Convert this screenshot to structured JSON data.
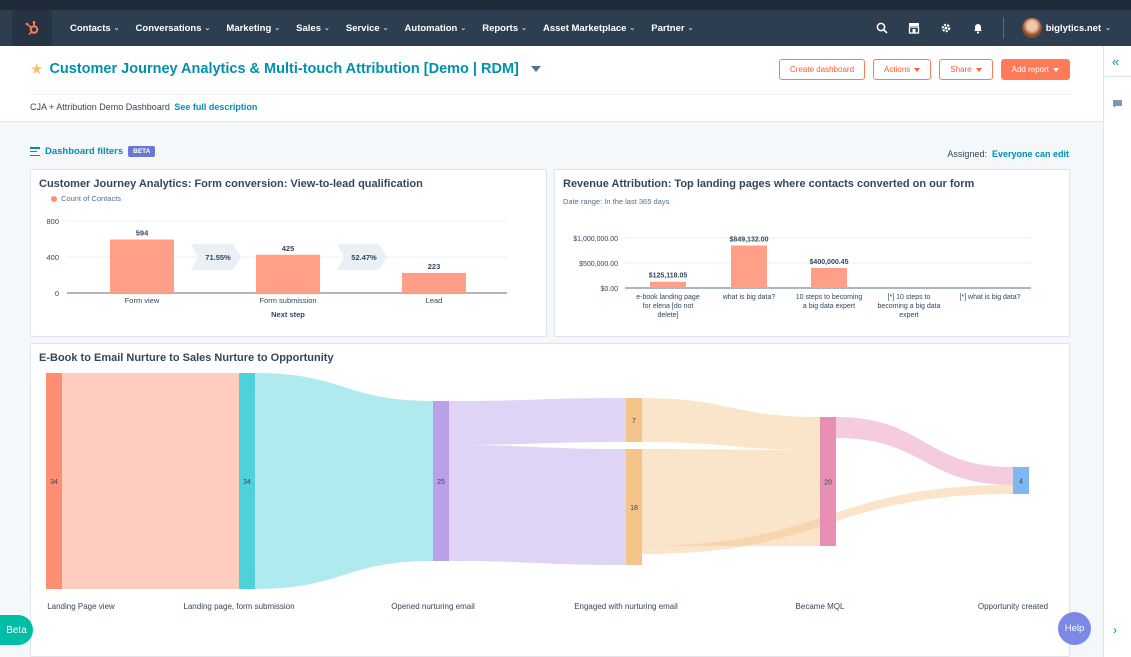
{
  "nav": {
    "items": [
      {
        "label": "Contacts"
      },
      {
        "label": "Conversations"
      },
      {
        "label": "Marketing"
      },
      {
        "label": "Sales"
      },
      {
        "label": "Service"
      },
      {
        "label": "Automation"
      },
      {
        "label": "Reports"
      },
      {
        "label": "Asset Marketplace"
      },
      {
        "label": "Partner"
      }
    ],
    "account": "biglytics.net",
    "icons": [
      "search-icon",
      "marketplace-icon",
      "settings-icon",
      "notifications-icon"
    ]
  },
  "header": {
    "title": "Customer Journey Analytics & Multi-touch Attribution [Demo | RDM]",
    "description": "CJA + Attribution Demo Dashboard",
    "description_link": "See full description",
    "buttons": {
      "create": "Create dashboard",
      "actions": "Actions",
      "share": "Share",
      "add": "Add report"
    }
  },
  "filters": {
    "label": "Dashboard filters",
    "badge": "BETA",
    "assigned_label": "Assigned:",
    "assigned_value": "Everyone can edit"
  },
  "funnel": {
    "title": "Customer Journey Analytics: Form conversion: View-to-lead qualification",
    "legend": "Count of Contacts",
    "chart_data": {
      "type": "bar",
      "categories": [
        "Form view",
        "Form submission",
        "Lead"
      ],
      "values": [
        594,
        425,
        223
      ],
      "value_labels": [
        "594",
        "425",
        "223"
      ],
      "conversion_rates": [
        "71.55%",
        "52.47%"
      ],
      "yticks": [
        "800",
        "400",
        "0"
      ],
      "ylim": [
        0,
        800
      ],
      "xlabel": "Next step",
      "color": "#ff9f87"
    }
  },
  "attribution": {
    "title": "Revenue Attribution: Top landing pages where contacts converted on our form",
    "subtitle": "Date range: In the last 365 days",
    "chart_data": {
      "type": "bar",
      "categories": [
        [
          "e-book landing page",
          "for elena [do not",
          "delete]"
        ],
        [
          "what is big data?"
        ],
        [
          "10 steps to becoming",
          "a big data expert"
        ],
        [
          "[*] 10 steps to",
          "becoming a big data",
          "expert"
        ],
        [
          "[*] what is big data?"
        ]
      ],
      "values": [
        125118.05,
        849132.0,
        400000.45,
        0,
        0
      ],
      "value_labels": [
        "$125,118.05",
        "$849,132.00",
        "$400,000.45",
        "",
        ""
      ],
      "yticks": [
        "$1,000,000.00",
        "$500,000.00",
        "$0.00"
      ],
      "ylim": [
        0,
        1000000
      ],
      "color": "#ff9f87"
    }
  },
  "sankey": {
    "title": "E-Book to Email Nurture to Sales Nurture to Opportunity",
    "chart_data": {
      "type": "sankey",
      "nodes": [
        {
          "label": "Landing Page view",
          "value": "34",
          "color": "#ff8f73"
        },
        {
          "label": "Landing page, form submission",
          "value": "34",
          "color": "#4fd1d9"
        },
        {
          "label": "Opened nurturing email",
          "value": "25",
          "color": "#b9a0e8"
        },
        {
          "label": "Engaged with nurturing email",
          "value": "7",
          "color": "#f5c489"
        },
        {
          "label": "Engaged with nurturing email",
          "value": "18",
          "color": "#f5c489"
        },
        {
          "label": "Became MQL",
          "value": "20",
          "color": "#e88fb4"
        },
        {
          "label": "Opportunity created",
          "value": "4",
          "color": "#7fb8f0"
        }
      ],
      "stage_labels": [
        "Landing Page view",
        "Landing page, form submission",
        "Opened nurturing email",
        "Engaged with nurturing email",
        "Became MQL",
        "Opportunity created"
      ]
    }
  },
  "beta_tab": "Beta",
  "help": "Help"
}
